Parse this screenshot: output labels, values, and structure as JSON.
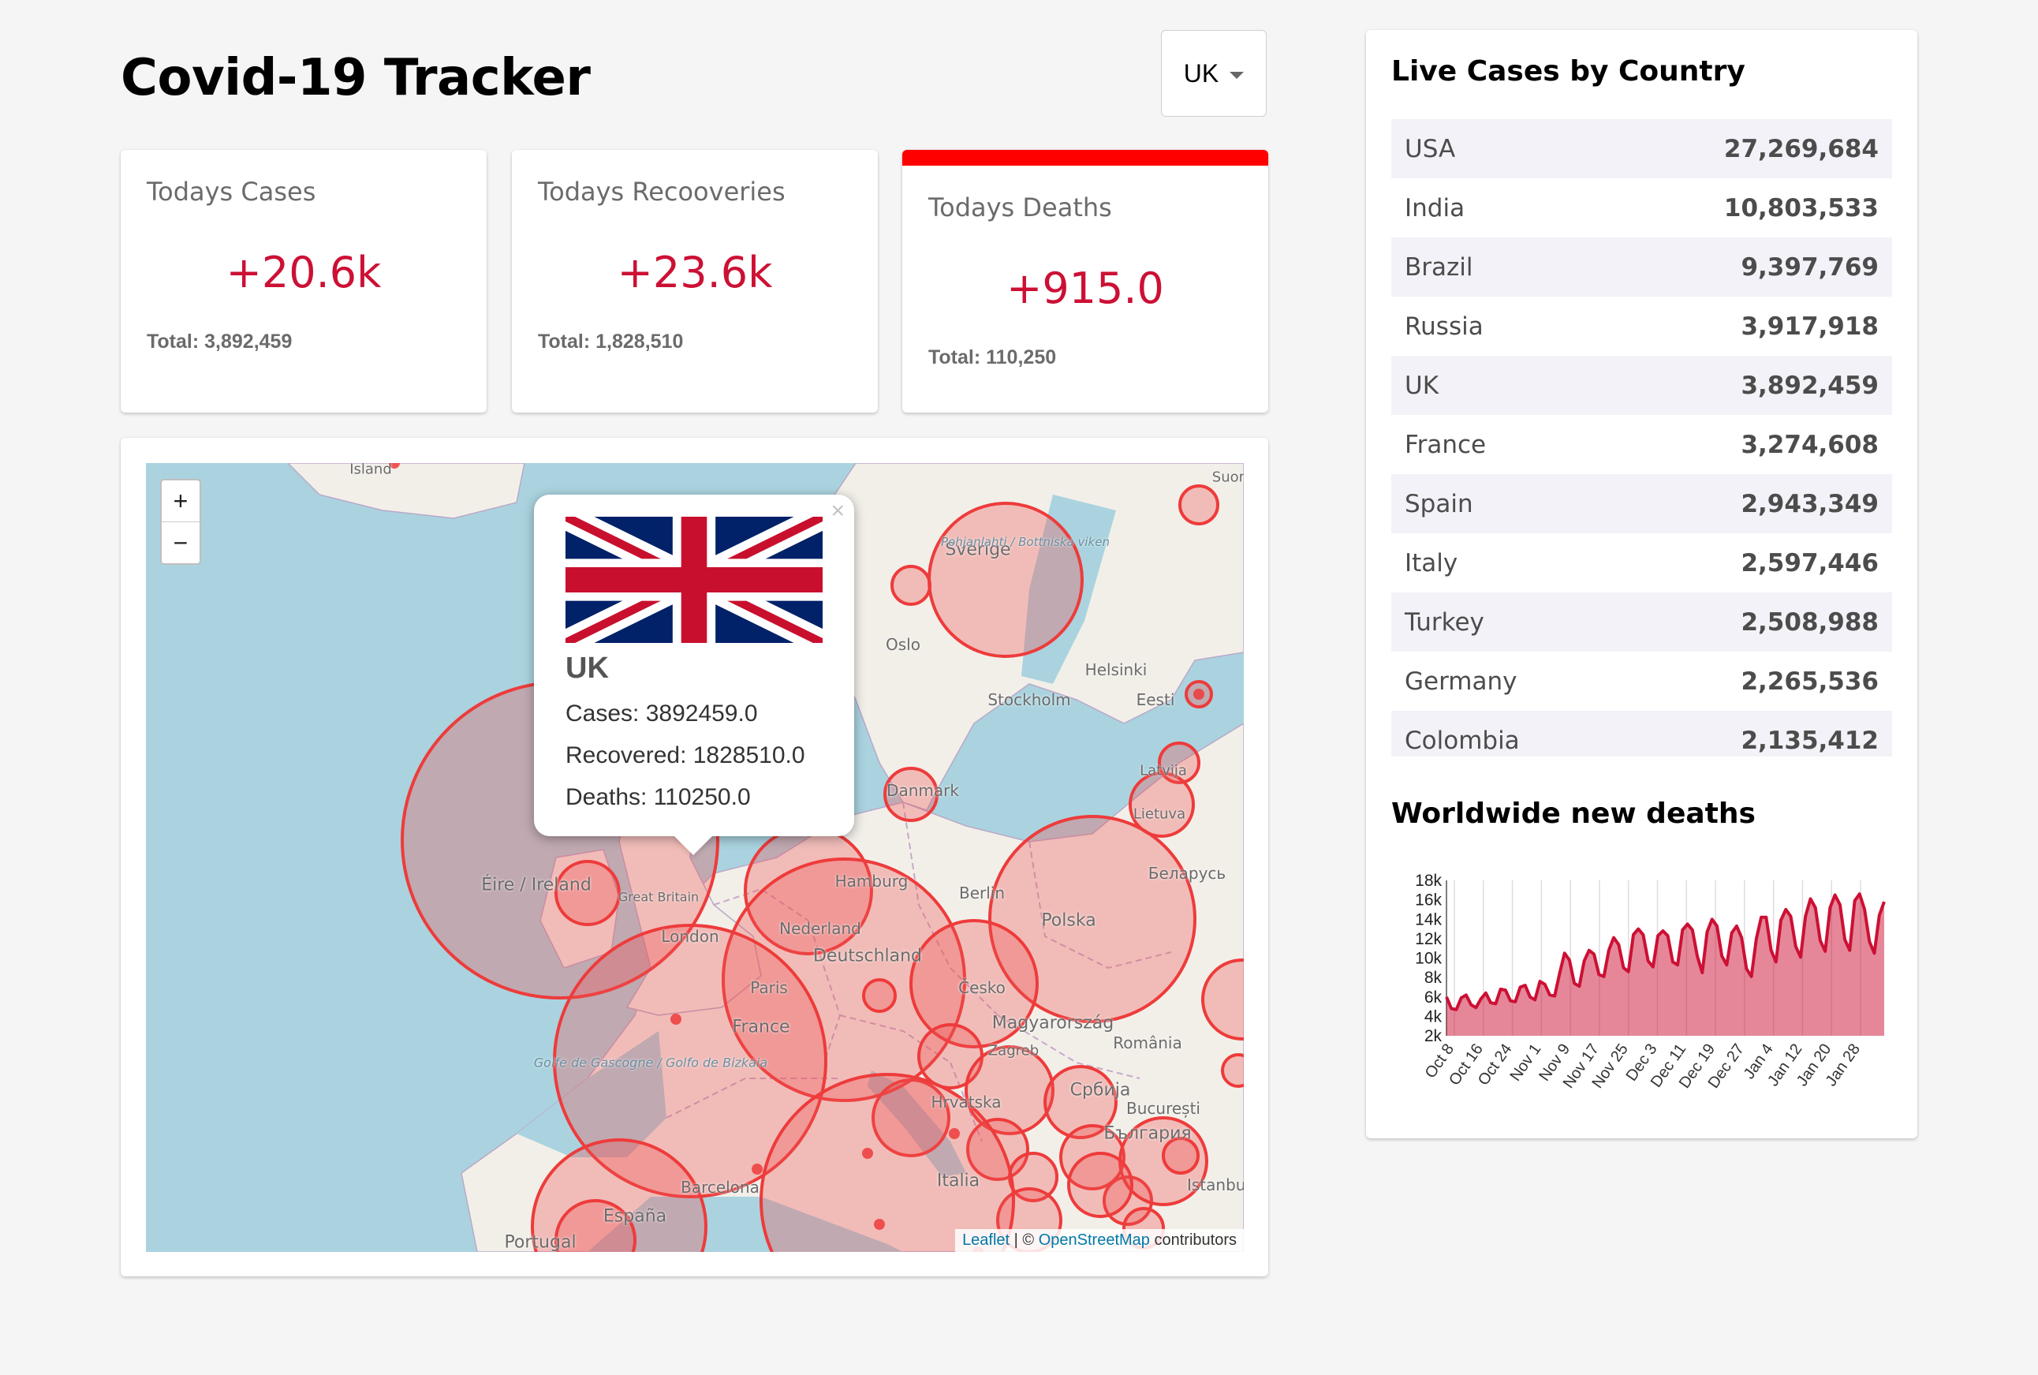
{
  "app": {
    "title": "Covid-19 Tracker"
  },
  "country_select": {
    "value": "UK"
  },
  "stats": [
    {
      "label": "Todays Cases",
      "value": "+20.6k",
      "total": "Total: 3,892,459",
      "selected": false
    },
    {
      "label": "Todays Recooveries",
      "value": "+23.6k",
      "total": "Total: 1,828,510",
      "selected": false
    },
    {
      "label": "Todays Deaths",
      "value": "+915.0",
      "total": "Total: 110,250",
      "selected": true
    }
  ],
  "map": {
    "zoom_in": "+",
    "zoom_out": "−",
    "labels": [
      "Ísland",
      "Sverige",
      "Oslo",
      "Stockholm",
      "Helsinki",
      "Eesti",
      "Latvija",
      "Lietuva",
      "Danmark",
      "Éire / Ireland",
      "London",
      "Nederland",
      "Hamburg",
      "Berlin",
      "Polska",
      "Беларусь",
      "Deutschland",
      "Paris",
      "France",
      "Česko",
      "Magyarország",
      "România",
      "Zagreb",
      "Hrvatska",
      "Србија",
      "България",
      "București",
      "Italia",
      "Barcelona",
      "España",
      "Portugal",
      "Golfe de Gascogne / Golfo de Bizkaia",
      "Pohjanlahti / Bottniska viken",
      "Suomi",
      "Istanbul",
      "Great Britain"
    ],
    "attribution": {
      "leaflet": "Leaflet",
      "sep": " | © ",
      "osm": "OpenStreetMap",
      "suffix": " contributors"
    },
    "popup": {
      "close": "×",
      "country": "UK",
      "cases": "Cases: 3892459.0",
      "recovered": "Recovered: 1828510.0",
      "deaths": "Deaths: 110250.0"
    },
    "circle_color": "#ee3b3b"
  },
  "sidebar": {
    "table_title": "Live Cases by Country",
    "rows": [
      {
        "country": "USA",
        "cases": "27,269,684"
      },
      {
        "country": "India",
        "cases": "10,803,533"
      },
      {
        "country": "Brazil",
        "cases": "9,397,769"
      },
      {
        "country": "Russia",
        "cases": "3,917,918"
      },
      {
        "country": "UK",
        "cases": "3,892,459"
      },
      {
        "country": "France",
        "cases": "3,274,608"
      },
      {
        "country": "Spain",
        "cases": "2,943,349"
      },
      {
        "country": "Italy",
        "cases": "2,597,446"
      },
      {
        "country": "Turkey",
        "cases": "2,508,988"
      },
      {
        "country": "Germany",
        "cases": "2,265,536"
      },
      {
        "country": "Colombia",
        "cases": "2,135,412"
      }
    ],
    "chart_title": "Worldwide new deaths"
  },
  "chart_data": {
    "type": "area",
    "title": "Worldwide new deaths",
    "ylim": [
      2000,
      18000
    ],
    "y_ticks": [
      "18k",
      "16k",
      "14k",
      "12k",
      "10k",
      "8k",
      "6k",
      "4k",
      "2k"
    ],
    "x_ticks": [
      "Oct 8",
      "Oct 16",
      "Oct 24",
      "Nov 1",
      "Nov 9",
      "Nov 17",
      "Nov 25",
      "Dec 3",
      "Dec 11",
      "Dec 19",
      "Dec 27",
      "Jan 4",
      "Jan 12",
      "Jan 20",
      "Jan 28"
    ],
    "color": "#cc1034",
    "fill": "rgba(204,16,52,0.5)",
    "values": [
      6000,
      4800,
      4700,
      5900,
      6200,
      5200,
      4900,
      5800,
      6400,
      5400,
      5300,
      6800,
      6700,
      5600,
      5500,
      7000,
      7200,
      6000,
      5700,
      7600,
      7300,
      6200,
      6100,
      8400,
      10500,
      9800,
      7400,
      7100,
      9700,
      10800,
      10400,
      8300,
      8100,
      10800,
      12100,
      11400,
      9000,
      8600,
      12400,
      13000,
      12400,
      9700,
      9100,
      12300,
      12800,
      12300,
      9600,
      9300,
      12900,
      13500,
      12900,
      10200,
      8500,
      12700,
      14000,
      13300,
      10200,
      9300,
      12600,
      13300,
      12100,
      8900,
      8100,
      12000,
      14200,
      14200,
      10800,
      9600,
      13900,
      15000,
      14300,
      11200,
      10100,
      14300,
      16100,
      15200,
      11800,
      10700,
      15200,
      16500,
      15500,
      11900,
      10800,
      15900,
      16600,
      15000,
      11700,
      10500,
      14400,
      15800
    ]
  }
}
